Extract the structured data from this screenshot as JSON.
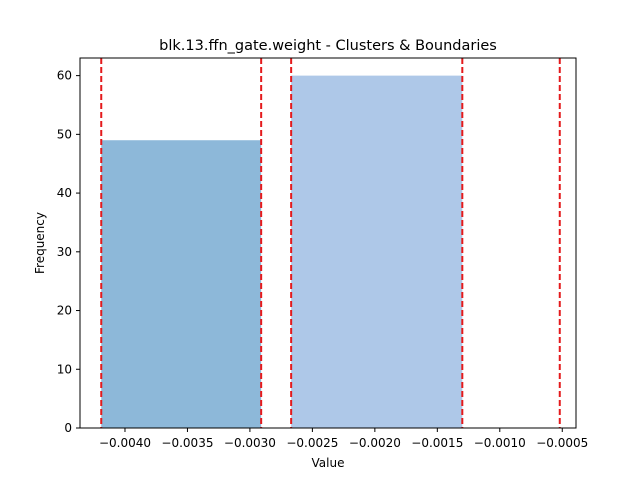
{
  "chart_data": {
    "type": "bar",
    "title": "blk.13.ffn_gate.weight - Clusters & Boundaries",
    "xlabel": "Value",
    "ylabel": "Frequency",
    "xlim": [
      -0.00436,
      -0.00039
    ],
    "ylim": [
      0,
      63
    ],
    "xticks": [
      -0.004,
      -0.0035,
      -0.003,
      -0.0025,
      -0.002,
      -0.0015,
      -0.001,
      -0.0005
    ],
    "xtick_labels": [
      "−0.0040",
      "−0.0035",
      "−0.0030",
      "−0.0025",
      "−0.0020",
      "−0.0015",
      "−0.0010",
      "−0.0005"
    ],
    "yticks": [
      0,
      10,
      20,
      30,
      40,
      50,
      60
    ],
    "ytick_labels": [
      "0",
      "10",
      "20",
      "30",
      "40",
      "50",
      "60"
    ],
    "bars": [
      {
        "x_start": -0.00419,
        "x_end": -0.00291,
        "value": 49,
        "color": "#8db8d9"
      },
      {
        "x_start": -0.00267,
        "x_end": -0.0013,
        "value": 60,
        "color": "#aec8e8"
      }
    ],
    "boundaries": [
      -0.00419,
      -0.00291,
      -0.00267,
      -0.0013,
      -0.00052
    ],
    "boundary_color": "#e41a1c",
    "grid": false,
    "legend": "none"
  }
}
